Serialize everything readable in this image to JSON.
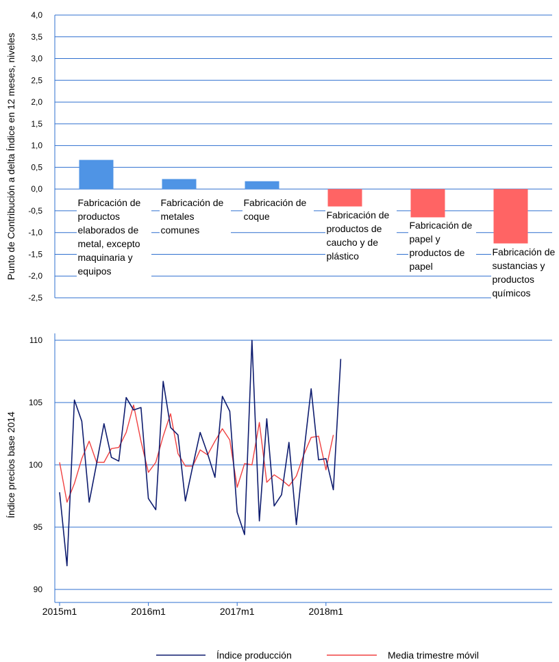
{
  "chart_data": [
    {
      "type": "bar",
      "ylabel": "Punto de Contribución a delta Índice en 12 meses, niveles",
      "ylim": [
        -2.5,
        4.0
      ],
      "yticks": [
        "4,0",
        "3,5",
        "3,0",
        "2,5",
        "2,0",
        "1,5",
        "1,0",
        "0,5",
        "0,0",
        "-0,5",
        "-1,0",
        "-1,5",
        "-2,0",
        "-2,5"
      ],
      "grid": true,
      "colors": {
        "positive": "#4f94e5",
        "negative": "#ff6464",
        "grid": "#2d6fcf"
      },
      "categories": [
        "Fabricación de productos elaborados de metal, excepto maquinaria y equipos",
        "Fabricación de metales comunes",
        "Fabricación de coque",
        "Fabricación de productos de caucho y de plástico",
        "Fabricación de papel y productos de papel",
        "Fabricación de sustancias y productos químicos"
      ],
      "values": [
        0.67,
        0.23,
        0.18,
        -0.4,
        -0.65,
        -1.25
      ]
    },
    {
      "type": "line",
      "ylabel": "Índice  precios base 2014",
      "ylim": [
        90,
        110
      ],
      "yticks": [
        "110",
        "105",
        "100",
        "95",
        "90"
      ],
      "xticks": [
        "2015m1",
        "2016m1",
        "2017m1",
        "2018m1"
      ],
      "grid": true,
      "legend_position": "bottom",
      "series": [
        {
          "name": "Índice producción",
          "color": "#0d1b6e",
          "values": [
            97.8,
            91.9,
            105.2,
            103.5,
            97.0,
            100.1,
            103.3,
            100.6,
            100.3,
            105.4,
            104.4,
            104.6,
            97.3,
            96.4,
            106.7,
            103.0,
            102.4,
            97.1,
            99.9,
            102.6,
            100.9,
            99.0,
            105.5,
            104.3,
            96.2,
            94.4,
            110.0,
            95.5,
            103.7,
            96.7,
            97.6,
            101.8,
            95.2,
            100.9,
            106.1,
            100.4,
            100.5,
            98.0,
            108.5
          ]
        },
        {
          "name": "Media trimestre móvil",
          "color": "#f04040",
          "values": [
            100.2,
            97.0,
            98.5,
            100.5,
            101.9,
            100.2,
            100.2,
            101.3,
            101.4,
            102.6,
            104.8,
            101.9,
            99.4,
            100.2,
            102.3,
            104.1,
            100.9,
            99.9,
            99.9,
            101.2,
            100.8,
            101.9,
            102.9,
            102.0,
            98.2,
            100.1,
            100.0,
            103.4,
            98.6,
            99.2,
            98.8,
            98.3,
            99.1,
            100.8,
            102.2,
            102.3,
            99.6,
            102.4
          ]
        }
      ]
    }
  ]
}
